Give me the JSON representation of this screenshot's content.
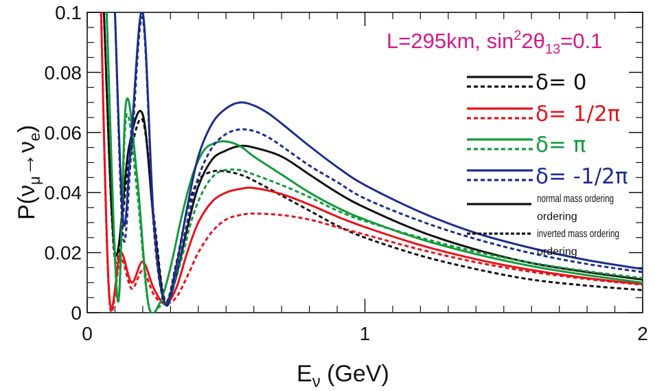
{
  "chart_data": {
    "type": "line",
    "xlabel_main": "E",
    "xlabel_sub": "ν",
    "xlabel_rest": " (GeV)",
    "ylabel_p": "P(",
    "ylabel_nu1": "ν",
    "ylabel_sub1": "μ",
    "ylabel_arrow": "→",
    "ylabel_nu2": "ν",
    "ylabel_sub2": "e",
    "ylabel_close": ")",
    "annotation_a": "L=295km, sin",
    "annotation_sup": "2",
    "annotation_b": "2θ",
    "annotation_sub": "13",
    "annotation_c": "=0.1",
    "xlim": [
      0,
      2
    ],
    "ylim": [
      0,
      0.1
    ],
    "x_ticks": [
      "0",
      "1",
      "2"
    ],
    "y_ticks": [
      "0",
      "0.02",
      "0.04",
      "0.06",
      "0.08",
      "0.1"
    ],
    "legend": [
      {
        "label": "δ= 0",
        "color": "#111111"
      },
      {
        "label": "δ= 1/2π",
        "color": "#e8121a"
      },
      {
        "label": "δ= π",
        "color": "#129a3c"
      },
      {
        "label": "δ= -1/2π",
        "color": "#1c2c8e"
      }
    ],
    "style_notes": {
      "solid": "normal mass ordering",
      "dashed": "inverted mass ordering"
    },
    "series": [
      {
        "name": "δ=0 normal",
        "color": "#111111",
        "dash": false,
        "x": [
          0.06,
          0.1,
          0.15,
          0.2,
          0.24,
          0.28,
          0.32,
          0.36,
          0.4,
          0.45,
          0.5,
          0.55,
          0.6,
          0.7,
          0.8,
          0.9,
          1.0,
          1.2,
          1.4,
          1.6,
          1.8,
          2.0
        ],
        "y": [
          0.1,
          0.02,
          0.055,
          0.066,
          0.03,
          0.003,
          0.012,
          0.028,
          0.042,
          0.051,
          0.054,
          0.0555,
          0.055,
          0.052,
          0.046,
          0.04,
          0.035,
          0.027,
          0.021,
          0.0165,
          0.0135,
          0.011
        ]
      },
      {
        "name": "δ=0 inverted",
        "color": "#111111",
        "dash": true,
        "x": [
          0.06,
          0.1,
          0.15,
          0.2,
          0.24,
          0.28,
          0.32,
          0.36,
          0.4,
          0.45,
          0.5,
          0.55,
          0.6,
          0.7,
          0.8,
          0.9,
          1.0,
          1.2,
          1.4,
          1.6,
          1.8,
          2.0
        ],
        "y": [
          0.1,
          0.018,
          0.05,
          0.064,
          0.032,
          0.004,
          0.016,
          0.034,
          0.044,
          0.047,
          0.047,
          0.046,
          0.044,
          0.039,
          0.034,
          0.029,
          0.025,
          0.019,
          0.0145,
          0.011,
          0.009,
          0.0075
        ]
      },
      {
        "name": "δ=1/2π normal",
        "color": "#e8121a",
        "dash": false,
        "x": [
          0.05,
          0.08,
          0.12,
          0.16,
          0.2,
          0.24,
          0.28,
          0.32,
          0.36,
          0.4,
          0.45,
          0.5,
          0.55,
          0.6,
          0.7,
          0.8,
          0.9,
          1.0,
          1.2,
          1.4,
          1.6,
          1.8,
          2.0
        ],
        "y": [
          0.1,
          0.005,
          0.02,
          0.01,
          0.017,
          0.008,
          0.003,
          0.008,
          0.02,
          0.03,
          0.037,
          0.04,
          0.0412,
          0.0415,
          0.0395,
          0.036,
          0.032,
          0.0285,
          0.0225,
          0.0178,
          0.0142,
          0.0115,
          0.0095
        ]
      },
      {
        "name": "δ=1/2π inverted",
        "color": "#e8121a",
        "dash": true,
        "x": [
          0.05,
          0.08,
          0.12,
          0.16,
          0.2,
          0.24,
          0.28,
          0.32,
          0.36,
          0.4,
          0.45,
          0.5,
          0.55,
          0.6,
          0.7,
          0.8,
          0.9,
          1.0,
          1.2,
          1.4,
          1.6,
          1.8,
          2.0
        ],
        "y": [
          0.1,
          0.004,
          0.018,
          0.008,
          0.014,
          0.006,
          0.003,
          0.005,
          0.012,
          0.02,
          0.027,
          0.031,
          0.0325,
          0.033,
          0.0325,
          0.031,
          0.0285,
          0.026,
          0.021,
          0.0168,
          0.0136,
          0.0112,
          0.0093
        ]
      },
      {
        "name": "δ=π normal",
        "color": "#129a3c",
        "dash": false,
        "x": [
          0.07,
          0.11,
          0.14,
          0.18,
          0.22,
          0.26,
          0.3,
          0.34,
          0.38,
          0.42,
          0.46,
          0.5,
          0.55,
          0.6,
          0.7,
          0.8,
          0.9,
          1.0,
          1.2,
          1.4,
          1.6,
          1.8,
          2.0
        ],
        "y": [
          0.1,
          0.004,
          0.07,
          0.045,
          0.003,
          0.003,
          0.015,
          0.032,
          0.046,
          0.054,
          0.0565,
          0.057,
          0.0555,
          0.052,
          0.046,
          0.04,
          0.035,
          0.031,
          0.0245,
          0.0195,
          0.0155,
          0.0125,
          0.01
        ]
      },
      {
        "name": "δ=π inverted",
        "color": "#129a3c",
        "dash": true,
        "x": [
          0.07,
          0.11,
          0.14,
          0.18,
          0.22,
          0.26,
          0.3,
          0.34,
          0.38,
          0.42,
          0.46,
          0.5,
          0.55,
          0.6,
          0.7,
          0.8,
          0.9,
          1.0,
          1.2,
          1.4,
          1.6,
          1.8,
          2.0
        ],
        "y": [
          0.1,
          0.004,
          0.065,
          0.04,
          0.003,
          0.002,
          0.006,
          0.018,
          0.032,
          0.041,
          0.046,
          0.0475,
          0.0475,
          0.046,
          0.0425,
          0.0385,
          0.034,
          0.0305,
          0.025,
          0.0203,
          0.0166,
          0.0138,
          0.0115
        ]
      },
      {
        "name": "δ=-1/2π normal",
        "color": "#1c2c8e",
        "dash": false,
        "x": [
          0.1,
          0.13,
          0.16,
          0.2,
          0.24,
          0.28,
          0.32,
          0.36,
          0.4,
          0.45,
          0.5,
          0.55,
          0.6,
          0.65,
          0.7,
          0.8,
          0.9,
          1.0,
          1.2,
          1.4,
          1.6,
          1.8,
          2.0
        ],
        "y": [
          0.1,
          0.03,
          0.06,
          0.1,
          0.03,
          0.003,
          0.015,
          0.035,
          0.052,
          0.063,
          0.068,
          0.07,
          0.069,
          0.0665,
          0.063,
          0.0555,
          0.0485,
          0.0425,
          0.0335,
          0.0265,
          0.0215,
          0.0175,
          0.0145
        ]
      },
      {
        "name": "δ=-1/2π inverted",
        "color": "#1c2c8e",
        "dash": true,
        "x": [
          0.1,
          0.13,
          0.16,
          0.2,
          0.24,
          0.28,
          0.32,
          0.36,
          0.4,
          0.45,
          0.5,
          0.55,
          0.6,
          0.65,
          0.7,
          0.8,
          0.9,
          1.0,
          1.2,
          1.4,
          1.6,
          1.8,
          2.0
        ],
        "y": [
          0.1,
          0.025,
          0.055,
          0.098,
          0.028,
          0.003,
          0.012,
          0.03,
          0.045,
          0.055,
          0.0595,
          0.061,
          0.0605,
          0.0585,
          0.0555,
          0.049,
          0.0435,
          0.038,
          0.0305,
          0.0245,
          0.0198,
          0.0162,
          0.0135
        ]
      }
    ]
  }
}
